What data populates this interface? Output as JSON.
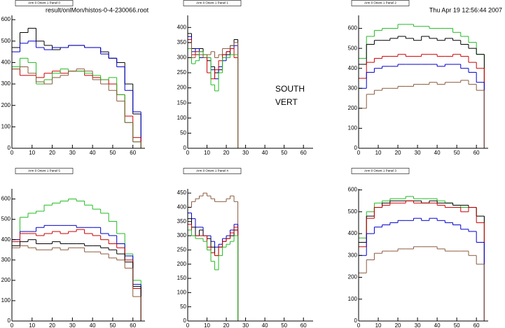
{
  "header": {
    "file": "result/onlMon/histos-0-4-230066.root",
    "timestamp": "Thu Apr 19 12:56:44 2007"
  },
  "chart_data": [
    {
      "type": "histogram",
      "title": "Arm 0 Orient 1 Panel 0",
      "bins": [
        0,
        4,
        8,
        12,
        16,
        20,
        24,
        28,
        32,
        36,
        40,
        44,
        48,
        52,
        56,
        60,
        64
      ],
      "xlim": [
        0,
        66
      ],
      "xticks": [
        0,
        10,
        20,
        30,
        40,
        50,
        60
      ],
      "ylim": [
        0,
        620
      ],
      "yticks": [
        0,
        100,
        200,
        300,
        400,
        500,
        600
      ],
      "series": [
        {
          "color": "#000000",
          "values": [
            470,
            540,
            560,
            500,
            480,
            460,
            470,
            480,
            480,
            470,
            470,
            450,
            420,
            400,
            300,
            160
          ]
        },
        {
          "color": "#0000cc",
          "values": [
            450,
            490,
            500,
            470,
            460,
            470,
            470,
            480,
            480,
            470,
            470,
            440,
            420,
            380,
            270,
            170
          ]
        },
        {
          "color": "#cc0000",
          "values": [
            370,
            340,
            340,
            330,
            350,
            360,
            350,
            360,
            360,
            340,
            330,
            320,
            300,
            250,
            150,
            50
          ]
        },
        {
          "color": "#22bb22",
          "values": [
            380,
            420,
            400,
            300,
            320,
            350,
            370,
            360,
            360,
            350,
            340,
            320,
            330,
            250,
            120,
            30
          ]
        },
        {
          "color": "#8b5a3c",
          "values": [
            370,
            380,
            350,
            310,
            300,
            330,
            340,
            360,
            370,
            360,
            320,
            300,
            270,
            220,
            120,
            30
          ]
        }
      ]
    },
    {
      "type": "histogram",
      "title": "Arm 0 Orient 1 Panel 1",
      "annotations": [
        "SOUTH",
        "VERT"
      ],
      "bins": [
        0,
        2,
        4,
        6,
        8,
        10,
        12,
        14,
        16,
        18,
        20,
        22,
        24,
        26
      ],
      "xlim": [
        0,
        65
      ],
      "xticks": [
        0,
        10,
        20,
        30,
        40,
        50,
        60
      ],
      "ylim": [
        0,
        440
      ],
      "yticks": [
        0,
        50,
        100,
        150,
        200,
        250,
        300,
        350,
        400
      ],
      "series": [
        {
          "color": "#000000",
          "values": [
            380,
            330,
            310,
            330,
            300,
            290,
            270,
            250,
            260,
            310,
            310,
            340,
            360
          ]
        },
        {
          "color": "#0000cc",
          "values": [
            370,
            320,
            330,
            300,
            300,
            300,
            260,
            230,
            270,
            290,
            320,
            330,
            340
          ]
        },
        {
          "color": "#cc0000",
          "values": [
            360,
            310,
            320,
            320,
            310,
            250,
            230,
            260,
            290,
            310,
            320,
            330,
            300
          ]
        },
        {
          "color": "#22bb22",
          "values": [
            330,
            280,
            290,
            320,
            310,
            300,
            210,
            190,
            250,
            300,
            300,
            310,
            310
          ]
        },
        {
          "color": "#8b5a3c",
          "values": [
            350,
            300,
            310,
            310,
            300,
            310,
            320,
            300,
            310,
            330,
            330,
            340,
            350
          ]
        }
      ]
    },
    {
      "type": "histogram",
      "title": "Arm 0 Orient 1 Panel 2",
      "bins": [
        0,
        4,
        8,
        12,
        16,
        20,
        24,
        28,
        32,
        36,
        40,
        44,
        48,
        52,
        56,
        60,
        64
      ],
      "xlim": [
        0,
        66
      ],
      "xticks": [
        0,
        10,
        20,
        30,
        40,
        50,
        60
      ],
      "ylim": [
        0,
        665
      ],
      "yticks": [
        0,
        100,
        200,
        300,
        400,
        500,
        600
      ],
      "series": [
        {
          "color": "#22bb22",
          "values": [
            450,
            560,
            590,
            600,
            600,
            620,
            620,
            610,
            610,
            600,
            600,
            600,
            580,
            560,
            530,
            470
          ]
        },
        {
          "color": "#000000",
          "values": [
            420,
            520,
            540,
            540,
            550,
            560,
            550,
            540,
            560,
            550,
            540,
            550,
            540,
            520,
            500,
            470
          ]
        },
        {
          "color": "#cc0000",
          "values": [
            350,
            430,
            450,
            460,
            460,
            470,
            460,
            460,
            470,
            470,
            460,
            460,
            470,
            460,
            430,
            400
          ]
        },
        {
          "color": "#0000cc",
          "values": [
            300,
            380,
            400,
            410,
            410,
            420,
            420,
            420,
            420,
            420,
            410,
            420,
            420,
            400,
            380,
            330
          ]
        },
        {
          "color": "#8b5a3c",
          "values": [
            200,
            270,
            290,
            300,
            300,
            310,
            310,
            320,
            320,
            330,
            320,
            330,
            330,
            340,
            320,
            290
          ]
        }
      ]
    },
    {
      "type": "histogram",
      "title": "Arm 0 Orient 1 Panel 5",
      "bins": [
        0,
        4,
        8,
        12,
        16,
        20,
        24,
        28,
        32,
        36,
        40,
        44,
        48,
        52,
        56,
        60,
        64
      ],
      "xlim": [
        0,
        66
      ],
      "xticks": [
        0,
        10,
        20,
        30,
        40,
        50,
        60
      ],
      "ylim": [
        0,
        650
      ],
      "yticks": [
        0,
        100,
        200,
        300,
        400,
        500,
        600
      ],
      "series": [
        {
          "color": "#22bb22",
          "values": [
            400,
            510,
            530,
            540,
            570,
            580,
            590,
            600,
            590,
            570,
            550,
            530,
            490,
            430,
            330,
            200
          ]
        },
        {
          "color": "#0000cc",
          "values": [
            400,
            440,
            440,
            460,
            470,
            470,
            470,
            470,
            460,
            460,
            460,
            430,
            420,
            380,
            320,
            180
          ]
        },
        {
          "color": "#cc0000",
          "values": [
            390,
            430,
            430,
            420,
            430,
            440,
            430,
            440,
            450,
            430,
            420,
            400,
            380,
            360,
            300,
            160
          ]
        },
        {
          "color": "#000000",
          "values": [
            370,
            390,
            400,
            380,
            380,
            390,
            380,
            380,
            380,
            370,
            370,
            360,
            350,
            330,
            290,
            170
          ]
        },
        {
          "color": "#8b5a3c",
          "values": [
            360,
            370,
            360,
            350,
            350,
            360,
            350,
            360,
            360,
            340,
            340,
            330,
            310,
            300,
            260,
            120
          ]
        }
      ]
    },
    {
      "type": "histogram",
      "title": "Arm 0 Orient 1 Panel 4",
      "bins": [
        0,
        2,
        4,
        6,
        8,
        10,
        12,
        14,
        16,
        18,
        20,
        22,
        24,
        26
      ],
      "xlim": [
        0,
        65
      ],
      "xticks": [
        0,
        10,
        20,
        30,
        40,
        50,
        60
      ],
      "ylim": [
        0,
        465
      ],
      "yticks": [
        0,
        50,
        100,
        150,
        200,
        250,
        300,
        350,
        400,
        450
      ],
      "series": [
        {
          "color": "#8b5a3c",
          "values": [
            400,
            420,
            430,
            440,
            450,
            440,
            430,
            420,
            420,
            420,
            430,
            440,
            420
          ]
        },
        {
          "color": "#0000cc",
          "values": [
            380,
            360,
            330,
            330,
            300,
            300,
            280,
            260,
            270,
            290,
            300,
            320,
            340
          ]
        },
        {
          "color": "#000000",
          "values": [
            360,
            330,
            300,
            320,
            300,
            290,
            260,
            230,
            260,
            280,
            290,
            300,
            320
          ]
        },
        {
          "color": "#cc0000",
          "values": [
            340,
            300,
            300,
            300,
            300,
            260,
            240,
            230,
            260,
            280,
            290,
            310,
            330
          ]
        },
        {
          "color": "#22bb22",
          "values": [
            320,
            300,
            290,
            290,
            280,
            250,
            210,
            180,
            230,
            260,
            270,
            280,
            300
          ]
        }
      ]
    },
    {
      "type": "histogram",
      "title": "Arm 0 Orient 1 Panel 3",
      "bins": [
        0,
        4,
        8,
        12,
        16,
        20,
        24,
        28,
        32,
        36,
        40,
        44,
        48,
        52,
        56,
        60,
        64
      ],
      "xlim": [
        0,
        66
      ],
      "xticks": [
        0,
        10,
        20,
        30,
        40,
        50,
        60
      ],
      "ylim": [
        0,
        605
      ],
      "yticks": [
        0,
        100,
        200,
        300,
        400,
        500,
        600
      ],
      "series": [
        {
          "color": "#22bb22",
          "values": [
            380,
            500,
            540,
            550,
            560,
            560,
            570,
            560,
            560,
            560,
            550,
            540,
            530,
            520,
            520,
            480
          ]
        },
        {
          "color": "#000000",
          "values": [
            360,
            480,
            520,
            540,
            550,
            550,
            550,
            550,
            540,
            550,
            540,
            540,
            530,
            530,
            520,
            480
          ]
        },
        {
          "color": "#cc0000",
          "values": [
            340,
            470,
            520,
            530,
            540,
            540,
            550,
            540,
            540,
            540,
            530,
            520,
            520,
            500,
            520,
            450
          ]
        },
        {
          "color": "#0000cc",
          "values": [
            300,
            400,
            430,
            440,
            450,
            460,
            460,
            470,
            460,
            470,
            460,
            450,
            440,
            420,
            410,
            360
          ]
        },
        {
          "color": "#8b5a3c",
          "values": [
            220,
            280,
            310,
            320,
            320,
            330,
            330,
            340,
            340,
            340,
            330,
            320,
            320,
            320,
            300,
            260
          ]
        }
      ]
    }
  ]
}
